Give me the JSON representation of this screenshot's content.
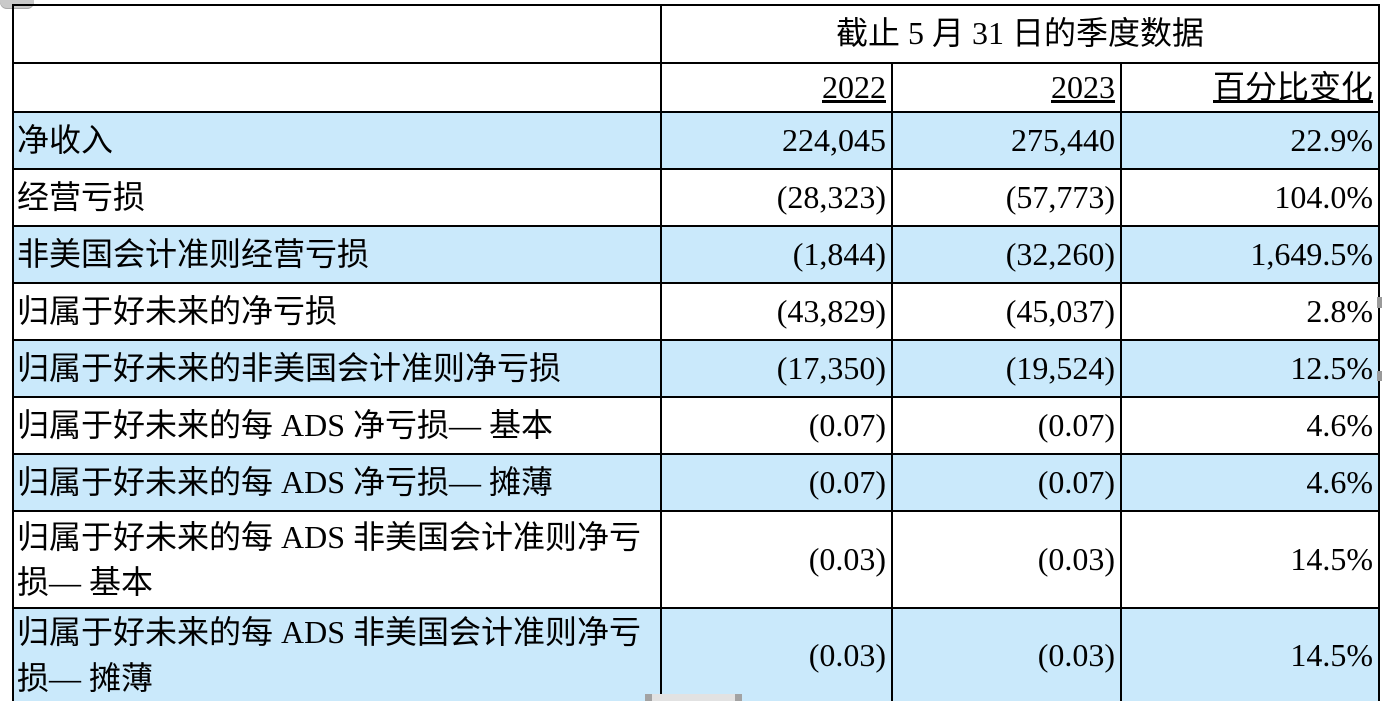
{
  "table": {
    "header": {
      "period_title": "截止 5 月 31 日的季度数据",
      "columns": [
        "2022",
        "2023",
        "百分比变化"
      ]
    },
    "rows": [
      {
        "label": "净收入",
        "y2022": "224,045",
        "y2023": "275,440",
        "pct_change": "22.9%"
      },
      {
        "label": "经营亏损",
        "y2022": "(28,323)",
        "y2023": "(57,773)",
        "pct_change": "104.0%"
      },
      {
        "label": "非美国会计准则经营亏损",
        "y2022": "(1,844)",
        "y2023": "(32,260)",
        "pct_change": "1,649.5%"
      },
      {
        "label": "归属于好未来的净亏损",
        "y2022": "(43,829)",
        "y2023": "(45,037)",
        "pct_change": "2.8%"
      },
      {
        "label": "归属于好未来的非美国会计准则净亏损",
        "y2022": "(17,350)",
        "y2023": "(19,524)",
        "pct_change": "12.5%"
      },
      {
        "label": "归属于好未来的每 ADS 净亏损— 基本",
        "y2022": "(0.07)",
        "y2023": "(0.07)",
        "pct_change": "4.6%"
      },
      {
        "label": "归属于好未来的每 ADS 净亏损— 摊薄",
        "y2022": "(0.07)",
        "y2023": "(0.07)",
        "pct_change": "4.6%"
      },
      {
        "label": "归属于好未来的每 ADS 非美国会计准则净亏损— 基本",
        "y2022": "(0.03)",
        "y2023": "(0.03)",
        "pct_change": "14.5%"
      },
      {
        "label": "归属于好未来的每 ADS 非美国会计准则净亏损— 摊薄",
        "y2022": "(0.03)",
        "y2023": "(0.03)",
        "pct_change": "14.5%"
      }
    ],
    "colors": {
      "row_highlight": "#cae9fb",
      "row_plain": "#ffffff",
      "border": "#000000",
      "scrollbar_gray": "#e2e2e2"
    }
  }
}
